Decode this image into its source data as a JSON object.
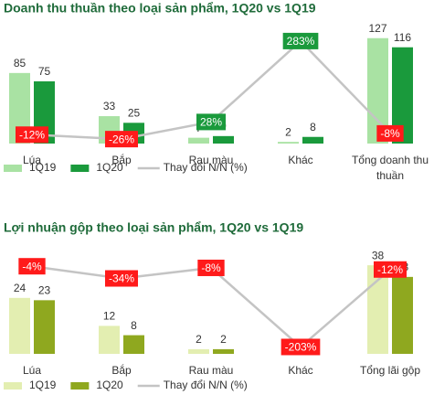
{
  "chart_data": [
    {
      "type": "bar",
      "title": "Doanh thu thuần theo loại sản phẩm, 1Q20 vs 1Q19",
      "categories": [
        "Lúa",
        "Bắp",
        "Rau màu",
        "Khác",
        "Tổng doanh thu thuần"
      ],
      "series": [
        {
          "name": "1Q19",
          "color": "#a9e2a3",
          "values": [
            85,
            33,
            7,
            2,
            127
          ]
        },
        {
          "name": "1Q20",
          "color": "#1a9a3c",
          "values": [
            75,
            25,
            9,
            8,
            116
          ]
        },
        {
          "name": "Thay đổi N/N (%)",
          "color": "#c4c4c4",
          "axis": "y2",
          "type": "line",
          "values": [
            -12,
            -26,
            28,
            283,
            -8
          ],
          "value_labels": [
            "-12%",
            "-26%",
            "28%",
            "283%",
            "-8%"
          ]
        }
      ],
      "ylim": [
        0,
        130
      ],
      "y2lim": [
        -40,
        300
      ],
      "legend": "bottom"
    },
    {
      "type": "bar",
      "title": "Lợi nhuận gộp theo loại sản phẩm, 1Q20 vs 1Q19",
      "categories": [
        "Lúa",
        "Bắp",
        "Rau màu",
        "Khác",
        "Tổng lãi gộp"
      ],
      "series": [
        {
          "name": "1Q19",
          "color": "#e3eeb1",
          "values": [
            24,
            12,
            2,
            0,
            38
          ]
        },
        {
          "name": "1Q20",
          "color": "#8fa81f",
          "values": [
            23,
            8,
            2,
            0,
            33
          ]
        },
        {
          "name": "Thay đổi N/N (%)",
          "color": "#c4c4c4",
          "axis": "y2",
          "type": "line",
          "values": [
            -4,
            -34,
            -8,
            -203,
            -12
          ],
          "value_labels": [
            "-4%",
            "-34%",
            "-8%",
            "-203%",
            "-12%"
          ]
        }
      ],
      "ylim": [
        0,
        40
      ],
      "y2lim": [
        -220,
        10
      ],
      "legend": "bottom"
    }
  ]
}
